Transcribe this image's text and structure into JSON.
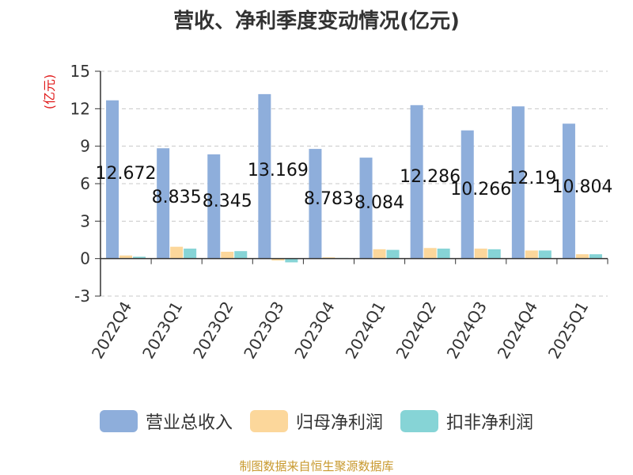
{
  "chart_data": {
    "type": "bar",
    "title": "营收、净利季度变动情况(亿元)",
    "ylabel": "(亿元)",
    "ylim": [
      -3,
      15
    ],
    "yticks": [
      -3,
      0,
      3,
      6,
      9,
      12,
      15
    ],
    "grid": true,
    "legend_position": "bottom",
    "categories": [
      "2022Q4",
      "2023Q1",
      "2023Q2",
      "2023Q3",
      "2023Q4",
      "2024Q1",
      "2024Q2",
      "2024Q3",
      "2024Q4",
      "2025Q1"
    ],
    "series": [
      {
        "name": "营业总收入",
        "color": "#8eaedb",
        "values": [
          12.672,
          8.835,
          8.345,
          13.169,
          8.783,
          8.084,
          12.286,
          10.266,
          12.19,
          10.804
        ]
      },
      {
        "name": "归母净利润",
        "color": "#fcd79b",
        "values": [
          0.25,
          0.95,
          0.55,
          -0.15,
          0.1,
          0.75,
          0.85,
          0.8,
          0.65,
          0.35
        ]
      },
      {
        "name": "扣非净利润",
        "color": "#86d4d6",
        "values": [
          0.15,
          0.8,
          0.6,
          -0.3,
          0.05,
          0.7,
          0.8,
          0.75,
          0.65,
          0.35
        ]
      }
    ],
    "data_labels": [
      "12.672",
      "8.835",
      "8.345",
      "13.169",
      "8.783",
      "8.084",
      "12.286",
      "10.266",
      "12.19",
      "10.804"
    ]
  },
  "legend": [
    {
      "label": "营业总收入",
      "color": "#8eaedb"
    },
    {
      "label": "归母净利润",
      "color": "#fcd79b"
    },
    {
      "label": "扣非净利润",
      "color": "#86d4d6"
    }
  ],
  "source": "制图数据来自恒生聚源数据库"
}
